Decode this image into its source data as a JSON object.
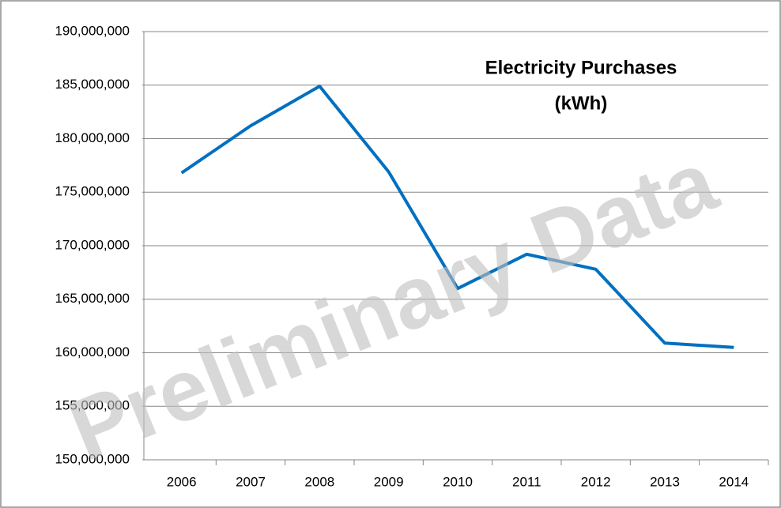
{
  "chart_data": {
    "type": "line",
    "title": [
      "Electricity Purchases",
      "(kWh)"
    ],
    "watermark": "Preliminary Data",
    "categories": [
      "2006",
      "2007",
      "2008",
      "2009",
      "2010",
      "2011",
      "2012",
      "2013",
      "2014"
    ],
    "values": [
      176800000,
      181200000,
      184900000,
      176900000,
      166000000,
      169200000,
      167800000,
      160900000,
      160500000
    ],
    "color": "#0070c0",
    "ylim": [
      150000000,
      190000000
    ],
    "yticks": [
      {
        "value": 150000000,
        "label": "150,000,000"
      },
      {
        "value": 155000000,
        "label": "155,000,000"
      },
      {
        "value": 160000000,
        "label": "160,000,000"
      },
      {
        "value": 165000000,
        "label": "165,000,000"
      },
      {
        "value": 170000000,
        "label": "170,000,000"
      },
      {
        "value": 175000000,
        "label": "175,000,000"
      },
      {
        "value": 180000000,
        "label": "180,000,000"
      },
      {
        "value": 185000000,
        "label": "185,000,000"
      },
      {
        "value": 190000000,
        "label": "190,000,000"
      }
    ],
    "grid": true
  }
}
